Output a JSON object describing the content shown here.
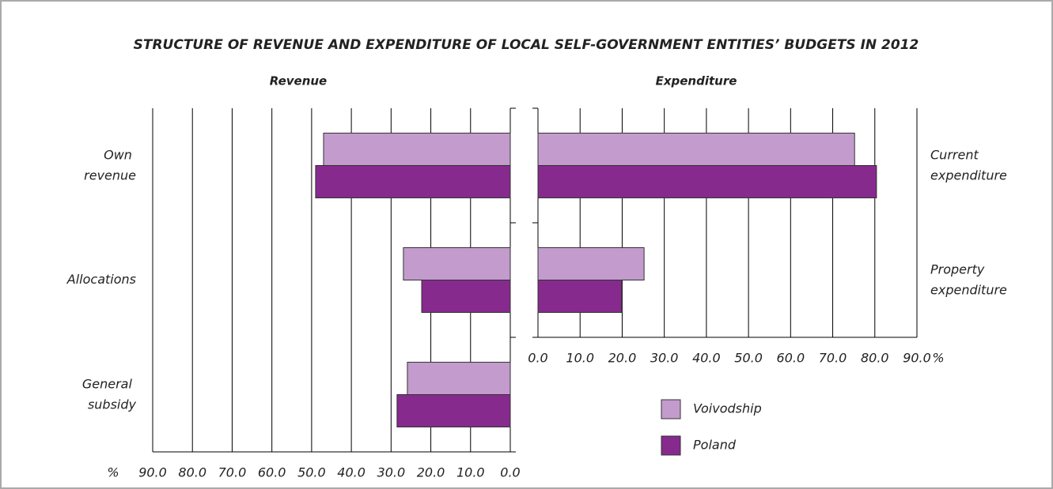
{
  "title": "STRUCTURE OF REVENUE AND EXPENDITURE OF LOCAL SELF-GOVERNMENT ENTITIES’ BUDGETS IN 2012",
  "chart_data": [
    {
      "type": "hbar",
      "title": "Revenue",
      "xlabel": "%",
      "x_inverted": true,
      "categories": [
        "Own revenue",
        "Allocations",
        "General subsidy"
      ],
      "series": [
        {
          "name": "Voivodship",
          "color": "#c39bcc",
          "values": [
            47.0,
            26.9,
            25.9
          ]
        },
        {
          "name": "Poland",
          "color": "#862a8e",
          "values": [
            49.0,
            22.3,
            28.5
          ]
        }
      ],
      "xlim": [
        0,
        90
      ],
      "xticks": [
        {
          "value": 0,
          "label": "0.0"
        },
        {
          "value": 10,
          "label": "10.0"
        },
        {
          "value": 20,
          "label": "20.0"
        },
        {
          "value": 30,
          "label": "30.0"
        },
        {
          "value": 40,
          "label": "40.0"
        },
        {
          "value": 50,
          "label": "50.0"
        },
        {
          "value": 60,
          "label": "60.0"
        },
        {
          "value": 70,
          "label": "70.0"
        },
        {
          "value": 80,
          "label": "80.0"
        },
        {
          "value": 90,
          "label": "90.0"
        }
      ],
      "grid": true
    },
    {
      "type": "hbar",
      "title": "Expenditure",
      "xlabel": "%",
      "x_inverted": false,
      "categories": [
        "Current expenditure",
        "Property expenditure"
      ],
      "series": [
        {
          "name": "Voivodship",
          "color": "#c39bcc",
          "values": [
            75.2,
            25.2
          ]
        },
        {
          "name": "Poland",
          "color": "#862a8e",
          "values": [
            80.4,
            19.9
          ]
        }
      ],
      "xlim": [
        0,
        90
      ],
      "xticks": [
        {
          "value": 0,
          "label": "0.0"
        },
        {
          "value": 10,
          "label": "10.0"
        },
        {
          "value": 20,
          "label": "20.0"
        },
        {
          "value": 30,
          "label": "30.0"
        },
        {
          "value": 40,
          "label": "40.0"
        },
        {
          "value": 50,
          "label": "50.0"
        },
        {
          "value": 60,
          "label": "60.0"
        },
        {
          "value": 70,
          "label": "70.0"
        },
        {
          "value": 80,
          "label": "80.0"
        },
        {
          "value": 90,
          "label": "90.0"
        }
      ],
      "grid": true
    }
  ]
}
